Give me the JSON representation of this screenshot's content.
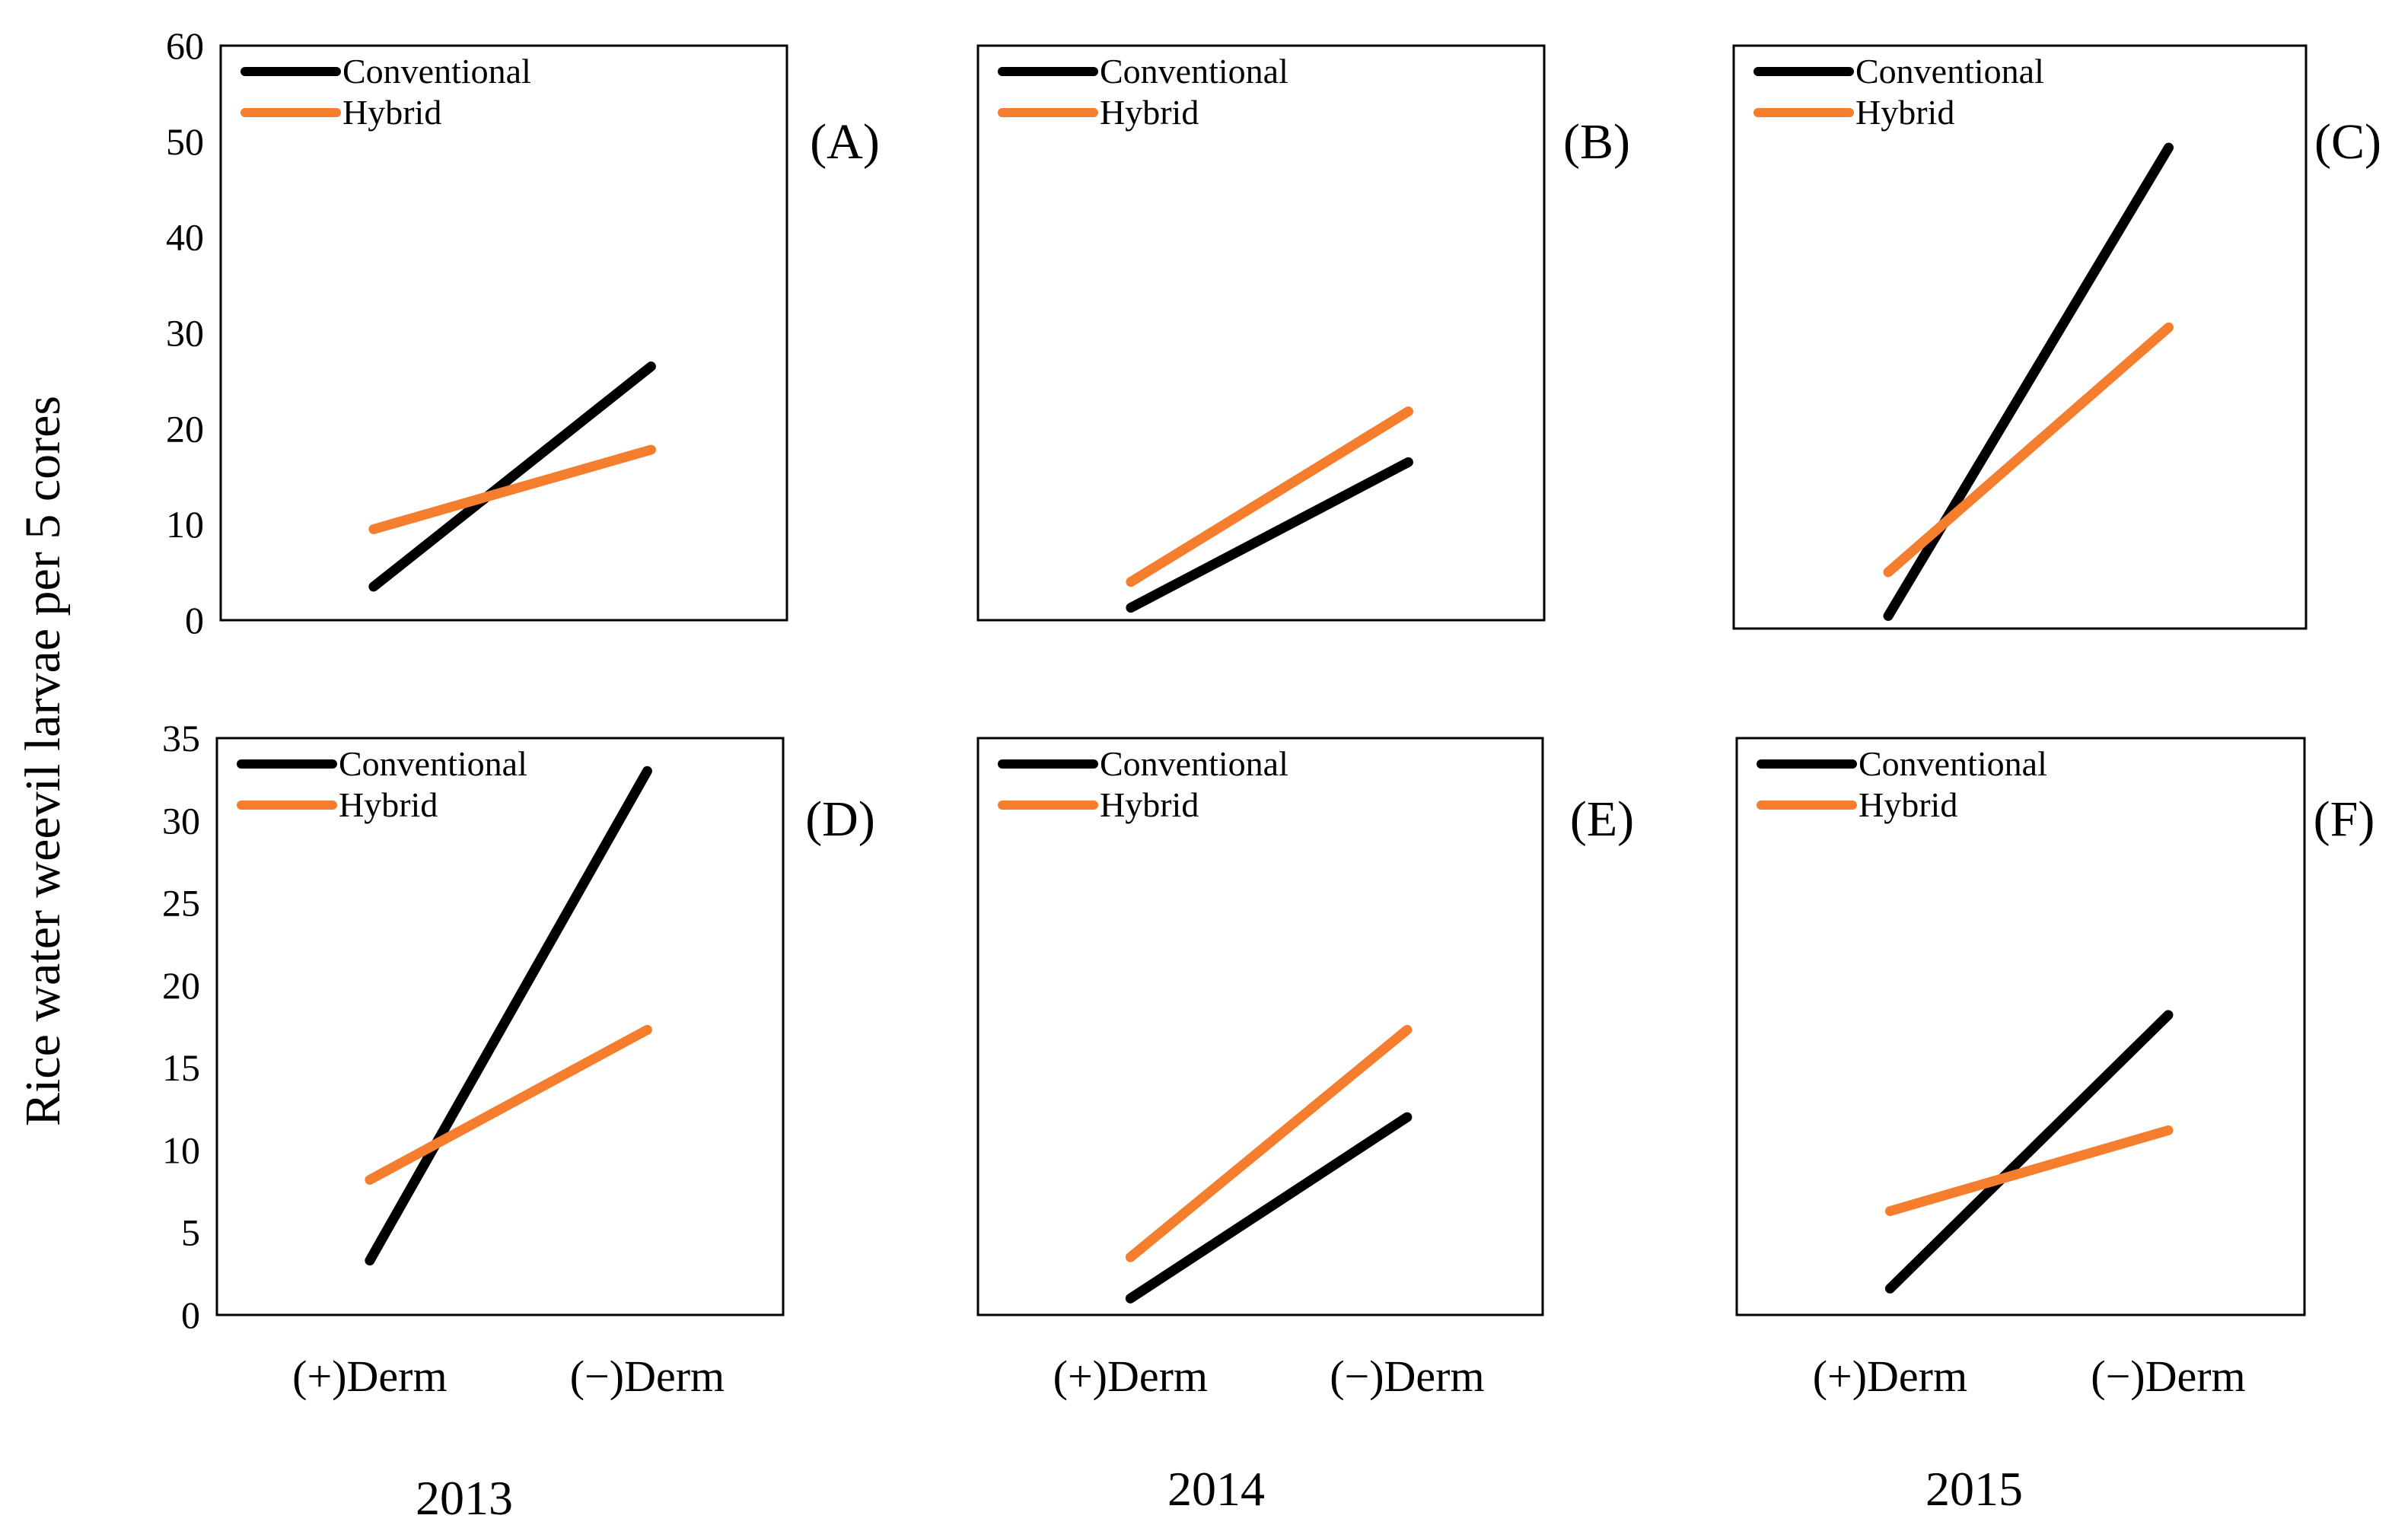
{
  "figure": {
    "ylabel": "Rice water weevil larvae per 5 cores",
    "years": [
      "2013",
      "2014",
      "2015"
    ]
  },
  "colors": {
    "Conventional": "#000000",
    "Hybrid": "#F47E2E"
  },
  "chart_data": [
    {
      "type": "line",
      "panel": "(A)",
      "year": "2013",
      "categories": [
        "(+)Derm",
        "(−)Derm"
      ],
      "ylim": [
        0,
        60
      ],
      "yticks": [
        0,
        10,
        20,
        30,
        40,
        50,
        60
      ],
      "legend_position": "top-left",
      "grid": false,
      "series": [
        {
          "name": "Conventional",
          "values": [
            3.5,
            26.5
          ]
        },
        {
          "name": "Hybrid",
          "values": [
            9.5,
            17.8
          ]
        }
      ]
    },
    {
      "type": "line",
      "panel": "(B)",
      "year": "2014",
      "categories": [
        "(+)Derm",
        "(−)Derm"
      ],
      "ylim": [
        0,
        60
      ],
      "yticks": [],
      "legend_position": "top-left",
      "grid": false,
      "series": [
        {
          "name": "Conventional",
          "values": [
            1.3,
            16.5
          ]
        },
        {
          "name": "Hybrid",
          "values": [
            4.0,
            21.8
          ]
        }
      ]
    },
    {
      "type": "line",
      "panel": "(C)",
      "year": "2015",
      "categories": [
        "(+)Derm",
        "(−)Derm"
      ],
      "ylim": [
        0,
        60
      ],
      "yticks": [],
      "legend_position": "top-left",
      "grid": false,
      "series": [
        {
          "name": "Conventional",
          "values": [
            1.3,
            49.5
          ]
        },
        {
          "name": "Hybrid",
          "values": [
            5.8,
            31.0
          ]
        }
      ]
    },
    {
      "type": "line",
      "panel": "(D)",
      "year": "2013",
      "categories": [
        "(+)Derm",
        "(−)Derm"
      ],
      "ylim": [
        0,
        35
      ],
      "yticks": [
        0,
        5,
        10,
        15,
        20,
        25,
        30,
        35
      ],
      "legend_position": "top-left",
      "grid": false,
      "series": [
        {
          "name": "Conventional",
          "values": [
            3.3,
            33.0
          ]
        },
        {
          "name": "Hybrid",
          "values": [
            8.2,
            17.3
          ]
        }
      ]
    },
    {
      "type": "line",
      "panel": "(E)",
      "year": "2014",
      "categories": [
        "(+)Derm",
        "(−)Derm"
      ],
      "ylim": [
        0,
        35
      ],
      "yticks": [],
      "legend_position": "top-left",
      "grid": false,
      "series": [
        {
          "name": "Conventional",
          "values": [
            1.0,
            12.0
          ]
        },
        {
          "name": "Hybrid",
          "values": [
            3.5,
            17.3
          ]
        }
      ]
    },
    {
      "type": "line",
      "panel": "(F)",
      "year": "2015",
      "categories": [
        "(+)Derm",
        "(−)Derm"
      ],
      "ylim": [
        0,
        35
      ],
      "yticks": [],
      "legend_position": "top-left",
      "grid": false,
      "series": [
        {
          "name": "Conventional",
          "values": [
            1.6,
            18.2
          ]
        },
        {
          "name": "Hybrid",
          "values": [
            6.3,
            11.2
          ]
        }
      ]
    }
  ]
}
